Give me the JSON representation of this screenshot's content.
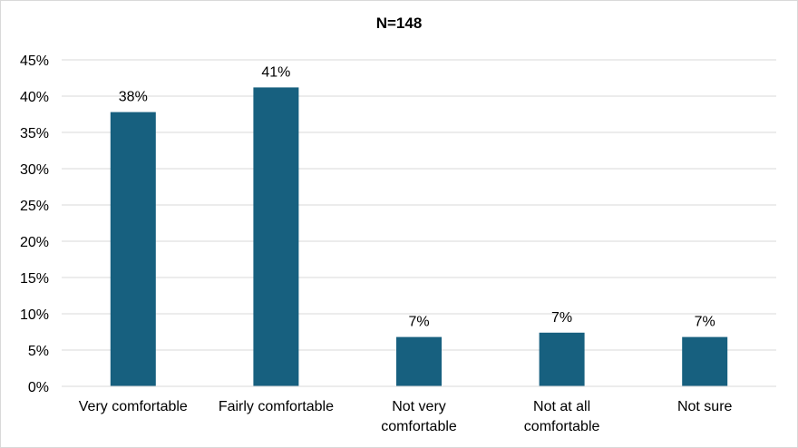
{
  "chart_data": {
    "type": "bar",
    "title": "N=148",
    "categories": [
      [
        "Very comfortable"
      ],
      [
        "Fairly comfortable"
      ],
      [
        "Not very",
        "comfortable"
      ],
      [
        "Not at all",
        "comfortable"
      ],
      [
        "Not sure"
      ]
    ],
    "values": [
      38,
      41,
      7,
      7,
      7
    ],
    "plotted_values": [
      37.8,
      41.2,
      6.8,
      7.4,
      6.8
    ],
    "data_labels": [
      "38%",
      "41%",
      "7%",
      "7%",
      "7%"
    ],
    "ylim": [
      0,
      45
    ],
    "yticks": [
      0,
      5,
      10,
      15,
      20,
      25,
      30,
      35,
      40,
      45
    ],
    "ytick_labels": [
      "0%",
      "5%",
      "10%",
      "15%",
      "20%",
      "25%",
      "30%",
      "35%",
      "40%",
      "45%"
    ],
    "grid": true,
    "bar_color": "#17607f",
    "grid_color": "#d9d9d9",
    "xlabel": "",
    "ylabel": ""
  }
}
